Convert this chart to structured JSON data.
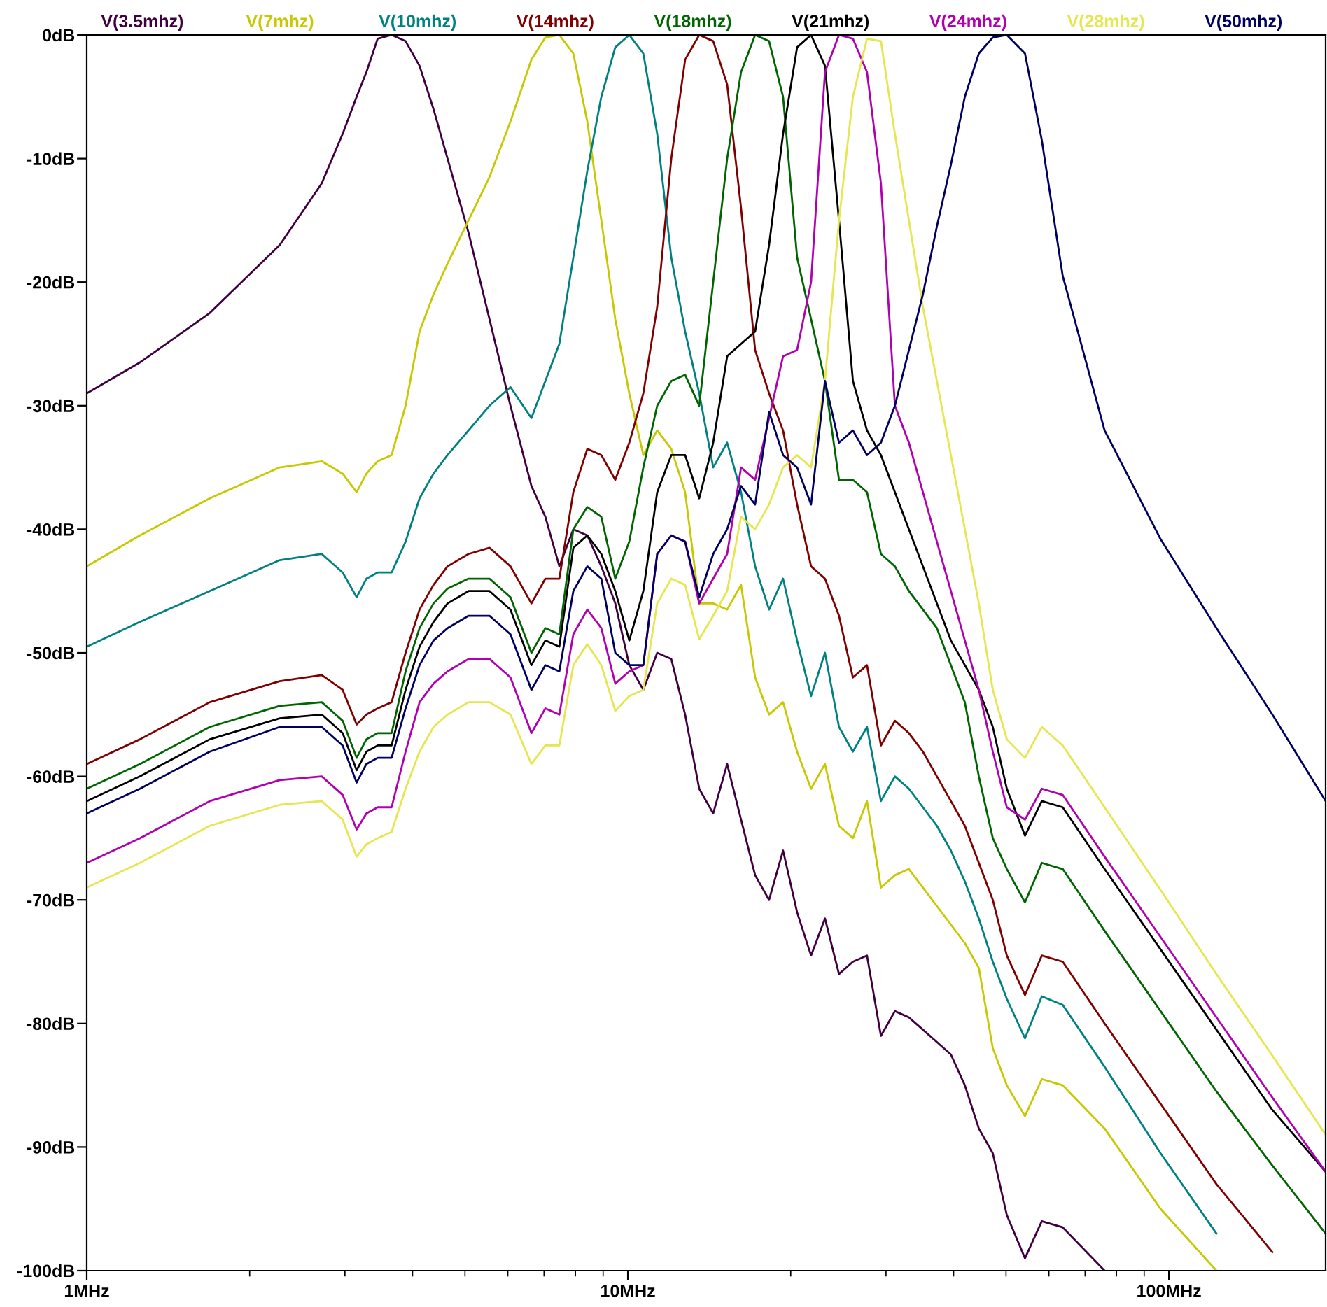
{
  "chart_data": {
    "type": "line",
    "log": "x",
    "grid": false,
    "legend": "top",
    "line_style": "solid",
    "marker": "none",
    "x": [
      1,
      1.254,
      1.688,
      2.273,
      2.718,
      2.971,
      3.153,
      3.287,
      3.448,
      3.659,
      3.883,
      4.121,
      4.373,
      4.642,
      5.076,
      5.549,
      6.067,
      6.633,
      7.039,
      7.47,
      7.928,
      8.414,
      8.931,
      9.478,
      10.06,
      10.68,
      11.33,
      12.03,
      12.76,
      13.55,
      14.38,
      15.26,
      16.19,
      17.19,
      18.24,
      19.36,
      20.55,
      21.81,
      23.14,
      24.56,
      26.06,
      27.67,
      29.36,
      31.16,
      33.07,
      35.1,
      37.25,
      39.54,
      41.96,
      44.53,
      47.26,
      50.16,
      54.2,
      58.21,
      63.64,
      76.05,
      96.5,
      122.4,
      155.3,
      194.8
    ],
    "xlim": [
      1,
      194.8
    ],
    "xticks": [
      {
        "value": 1,
        "label": "1MHz"
      },
      {
        "value": 10,
        "label": "10MHz"
      },
      {
        "value": 100,
        "label": "100MHz"
      }
    ],
    "ylim": [
      -100,
      0
    ],
    "yticks": [
      {
        "value": 0,
        "label": "0dB"
      },
      {
        "value": -10,
        "label": "-10dB"
      },
      {
        "value": -20,
        "label": "-20dB"
      },
      {
        "value": -30,
        "label": "-30dB"
      },
      {
        "value": -40,
        "label": "-40dB"
      },
      {
        "value": -50,
        "label": "-50dB"
      },
      {
        "value": -60,
        "label": "-60dB"
      },
      {
        "value": -70,
        "label": "-70dB"
      },
      {
        "value": -80,
        "label": "-80dB"
      },
      {
        "value": -90,
        "label": "-90dB"
      },
      {
        "value": -100,
        "label": "-100dB"
      }
    ],
    "series": [
      {
        "name": "V(3.5mhz)",
        "color": "#400040",
        "values": [
          -29,
          -26.5,
          -22.5,
          -17,
          -12,
          -8,
          -5,
          -3,
          -0.3,
          0,
          -0.5,
          -2.5,
          -6,
          -10,
          -16,
          -23,
          -30,
          -36.5,
          -39,
          -43,
          -40,
          -40.5,
          -43,
          -46,
          -51,
          -53,
          -50,
          -50.5,
          -55,
          -61,
          -63,
          -59,
          -63.5,
          -68,
          -70,
          -66,
          -71,
          -74.5,
          -71.5,
          -76,
          -75,
          -74.5,
          -81,
          -79,
          -79.5,
          -80.5,
          -81.5,
          -82.5,
          -85,
          -88.5,
          -90.5,
          -95.5,
          -99,
          -96,
          -96.5,
          -100,
          null,
          null,
          null,
          null
        ]
      },
      {
        "name": "V(7mhz)",
        "color": "#c8c800",
        "values": [
          -43,
          -40.5,
          -37.5,
          -35,
          -34.5,
          -35.5,
          -37,
          -35.5,
          -34.5,
          -34,
          -30,
          -24,
          -21,
          -18.5,
          -15,
          -11.5,
          -7,
          -2,
          -0.2,
          0,
          -1.5,
          -7,
          -15,
          -23,
          -29,
          -34,
          -32,
          -33.5,
          -37,
          -46,
          -46,
          -46.5,
          -44.5,
          -52,
          -55,
          -54,
          -58,
          -61,
          -59,
          -64,
          -65,
          -62,
          -69,
          -68,
          -67.5,
          -69,
          -70.5,
          -72,
          -73.5,
          -75.5,
          -82,
          -85,
          -87.5,
          -84.5,
          -85,
          -88.5,
          -95,
          -100,
          null,
          null
        ]
      },
      {
        "name": "V(10mhz)",
        "color": "#008080",
        "values": [
          -49.5,
          -47.5,
          -45,
          -42.5,
          -42,
          -43.5,
          -45.5,
          -44,
          -43.5,
          -43.5,
          -41,
          -37.5,
          -35.5,
          -34,
          -32,
          -30,
          -28.5,
          -31,
          -28,
          -25,
          -18,
          -11,
          -5,
          -1,
          0,
          -1.5,
          -8,
          -18,
          -24,
          -29,
          -35,
          -33,
          -37,
          -43,
          -46.5,
          -44,
          -49,
          -53.5,
          -50,
          -56,
          -58,
          -56,
          -62,
          -60,
          -61,
          -62.5,
          -64,
          -66,
          -68.5,
          -71.5,
          -75,
          -78,
          -81.2,
          -77.8,
          -78.5,
          -83.5,
          -90.5,
          -97,
          null,
          null
        ]
      },
      {
        "name": "V(14mhz)",
        "color": "#800000",
        "values": [
          -59,
          -57,
          -54,
          -52.3,
          -51.8,
          -53,
          -55.8,
          -55,
          -54.5,
          -54,
          -50,
          -46.5,
          -44.5,
          -43,
          -42,
          -41.5,
          -43,
          -46,
          -44,
          -44,
          -37,
          -33.5,
          -34,
          -36,
          -33,
          -29,
          -22,
          -10,
          -2,
          0,
          -0.5,
          -4,
          -14,
          -25.5,
          -29,
          -32,
          -38,
          -43,
          -44,
          -47,
          -52,
          -51,
          -57.5,
          -55.5,
          -56.5,
          -58,
          -60,
          -62,
          -64,
          -67,
          -70,
          -74.5,
          -77.7,
          -74.5,
          -75,
          -80,
          -86.5,
          -93,
          -98.5,
          null
        ]
      },
      {
        "name": "V(18mhz)",
        "color": "#006400",
        "values": [
          -61,
          -59,
          -56,
          -54.3,
          -54,
          -55.5,
          -58.5,
          -57,
          -56.5,
          -56.5,
          -51.5,
          -48,
          -46,
          -44.8,
          -44,
          -44,
          -45.5,
          -50,
          -48,
          -48.5,
          -40,
          -38.2,
          -39,
          -44,
          -41,
          -35,
          -30,
          -28,
          -27.5,
          -30,
          -20,
          -10,
          -3,
          0,
          -0.5,
          -5,
          -18,
          -23,
          -28,
          -36,
          -36,
          -37,
          -42,
          -43,
          -45,
          -46.5,
          -48,
          -51,
          -54,
          -60,
          -65,
          -67.5,
          -70.2,
          -67,
          -67.5,
          -72.5,
          -79,
          -85.5,
          -91.5,
          -97
        ]
      },
      {
        "name": "V(21mhz)",
        "color": "#000000",
        "values": [
          -62,
          -60,
          -57,
          -55.3,
          -55,
          -56.5,
          -59.5,
          -58,
          -57.5,
          -57.5,
          -53,
          -49.5,
          -47.5,
          -46,
          -45,
          -45,
          -46.5,
          -51,
          -49,
          -49.5,
          -41.5,
          -40.5,
          -42,
          -45,
          -49,
          -45,
          -37,
          -34,
          -34,
          -37.5,
          -33,
          -26,
          -25,
          -24,
          -17,
          -8,
          -1,
          0,
          -2.5,
          -15,
          -28,
          -32,
          -34,
          -37,
          -40,
          -43,
          -46,
          -49,
          -51,
          -53,
          -56,
          -61,
          -64.8,
          -62,
          -62.5,
          -67.5,
          -74,
          -80.5,
          -87,
          -92
        ]
      },
      {
        "name": "V(24mhz)",
        "color": "#b000b0",
        "values": [
          -67,
          -65,
          -62,
          -60.3,
          -60,
          -61.5,
          -64.3,
          -63,
          -62.5,
          -62.5,
          -58,
          -54,
          -52.5,
          -51.5,
          -50.5,
          -50.5,
          -52,
          -56.5,
          -54.5,
          -55,
          -48.5,
          -46.5,
          -48,
          -52.5,
          -51.5,
          -51,
          -42,
          -40.5,
          -41,
          -46,
          -44,
          -42,
          -35,
          -36,
          -31,
          -26,
          -25.5,
          -20,
          -3,
          0,
          -0.3,
          -3,
          -12,
          -30,
          -33,
          -37,
          -41,
          -45,
          -49,
          -53,
          -58,
          -62.5,
          -63.5,
          -61,
          -61.5,
          -66.5,
          -73,
          -79.5,
          -86,
          -92
        ]
      },
      {
        "name": "V(28mhz)",
        "color": "#e6e650",
        "values": [
          -69,
          -67,
          -64,
          -62.3,
          -62,
          -63.5,
          -66.5,
          -65.5,
          -65,
          -64.5,
          -61,
          -58,
          -56,
          -55,
          -54,
          -54,
          -55,
          -59,
          -57.5,
          -57.5,
          -51,
          -49.3,
          -51,
          -54.7,
          -53.5,
          -53,
          -46,
          -44,
          -44.5,
          -48.9,
          -47,
          -45,
          -39,
          -40,
          -38,
          -35,
          -34,
          -35,
          -28,
          -15,
          -5,
          -0.3,
          -0.5,
          -8,
          -15,
          -22,
          -28,
          -34,
          -40,
          -46,
          -53,
          -57,
          -58.5,
          -56,
          -57.5,
          -62.5,
          -69.2,
          -76,
          -82.6,
          -89
        ]
      },
      {
        "name": "V(50mhz)",
        "color": "#000060",
        "values": [
          -63,
          -61,
          -58,
          -56,
          -56,
          -57.5,
          -60.5,
          -59,
          -58.5,
          -58.5,
          -54.5,
          -51,
          -49,
          -48,
          -47,
          -47,
          -48.5,
          -53,
          -51,
          -51.5,
          -45,
          -43,
          -44,
          -50,
          -51,
          -51,
          -42,
          -40.5,
          -41,
          -45.5,
          -42,
          -40,
          -36.5,
          -38,
          -30.5,
          -34,
          -35,
          -38,
          -28,
          -33,
          -32,
          -34,
          -33,
          -30,
          -25.5,
          -21,
          -15.5,
          -10.5,
          -5,
          -1.5,
          -0.2,
          0,
          -1.5,
          -8.5,
          -19.5,
          -32,
          -40.8,
          -48,
          -55,
          -62
        ]
      }
    ]
  }
}
